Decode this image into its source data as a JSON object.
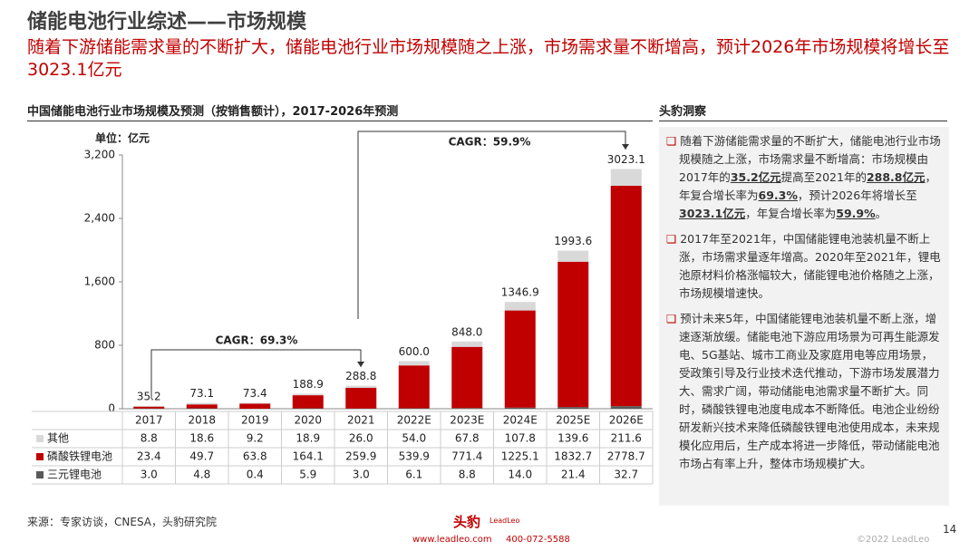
{
  "header": {
    "title": "储能电池行业综述——市场规模",
    "subtitle": "随着下游储能需求量的不断扩大，储能电池行业市场规模随之上涨，市场需求量不断增高，预计2026年市场规模将增长至3023.1亿元"
  },
  "chart_data": {
    "type": "stacked_bar",
    "title": "中国储能电池行业市场规模及预测（按销售额计），2017-2026年预测",
    "unit": "单位：亿元",
    "categories": [
      "2017",
      "2018",
      "2019",
      "2020",
      "2021",
      "2022E",
      "2023E",
      "2024E",
      "2025E",
      "2026E"
    ],
    "series": [
      {
        "name": "三元锂电池",
        "color": "#595959",
        "values": [
          3.0,
          4.8,
          0.4,
          5.9,
          3.0,
          6.1,
          8.8,
          14.0,
          21.4,
          32.7
        ],
        "value_labels": [
          "3.0",
          "4.8",
          "0.4",
          "5.9",
          "3.0",
          "6.1",
          "8.8",
          "14.0",
          "21.4",
          "32.7"
        ]
      },
      {
        "name": "磷酸铁锂电池",
        "color": "#c00000",
        "values": [
          23.4,
          49.7,
          63.8,
          164.1,
          259.9,
          539.9,
          771.4,
          1225.1,
          1832.7,
          2778.7
        ],
        "value_labels": [
          "23.4",
          "49.7",
          "63.8",
          "164.1",
          "259.9",
          "539.9",
          "771.4",
          "1225.1",
          "1832.7",
          "2778.7"
        ]
      },
      {
        "name": "其他",
        "color": "#d9d9d9",
        "values": [
          8.8,
          18.6,
          9.2,
          18.9,
          26.0,
          54.0,
          67.8,
          107.8,
          139.6,
          211.6
        ],
        "value_labels": [
          "8.8",
          "18.6",
          "9.2",
          "18.9",
          "26.0",
          "54.0",
          "67.8",
          "107.8",
          "139.6",
          "211.6"
        ]
      }
    ],
    "total_labels": [
      "35.2",
      "73.1",
      "73.4",
      "188.9",
      "288.8",
      "600.0",
      "848.0",
      "1346.9",
      "1993.6",
      "3023.1"
    ],
    "ylim": [
      0,
      3200
    ],
    "yticks": [
      0,
      {
        "value": 800,
        "label": "800"
      },
      {
        "value": 1600,
        "label": "1,600"
      },
      {
        "value": 2400,
        "label": "2,400"
      },
      {
        "value": 3200,
        "label": "3,200"
      }
    ],
    "annotations": [
      "CAGR：69.3%",
      "CAGR：59.9%"
    ]
  },
  "insight": {
    "title": "头豹洞察",
    "bullets": [
      [
        "随着下游储能需求量的不断扩大，储能电池行业市场规模随之上涨，市场需求量不断增高：市场规模由2017年的",
        "35.2亿元",
        "提高至2021年的",
        "288.8亿元",
        "，年复合增长率为",
        "69.3%",
        "，预计2026年将增长至",
        "3023.1亿元",
        "，年复合增长率为",
        "59.9%",
        "。"
      ],
      [
        "2017年至2021年，中国储能锂电池装机量不断上涨，市场需求量逐年增高。2020年至2021年，锂电池原材料价格涨幅较大，储能锂电池价格随之上涨，市场规模增速快。"
      ],
      [
        "预计未来5年，中国储能锂电池装机量不断上涨，增速逐渐放缓。储能电池下游应用场景为可再生能源发电、5G基站、城市工商业及家庭用电等应用场景，受政策引导及行业技术迭代推动，下游市场发展潜力大、需求广阔，带动储能电池需求量不断扩大。同时，磷酸铁锂电池度电成本不断降低。电池企业纷纷研发新兴技术来降低磷酸铁锂电池使用成本，未来规模化应用后，生产成本将进一步降低，带动储能电池市场占有率上升，整体市场规模扩大。"
      ]
    ]
  },
  "footer": {
    "source": "来源：专家访谈，CNESA，头豹研究院",
    "page": "14",
    "copyright": "©2022 LeadLeo",
    "logo": "头豹",
    "logo_en": "LeadLeo",
    "website": "www.leadleo.com",
    "phone": "400-072-5588"
  }
}
